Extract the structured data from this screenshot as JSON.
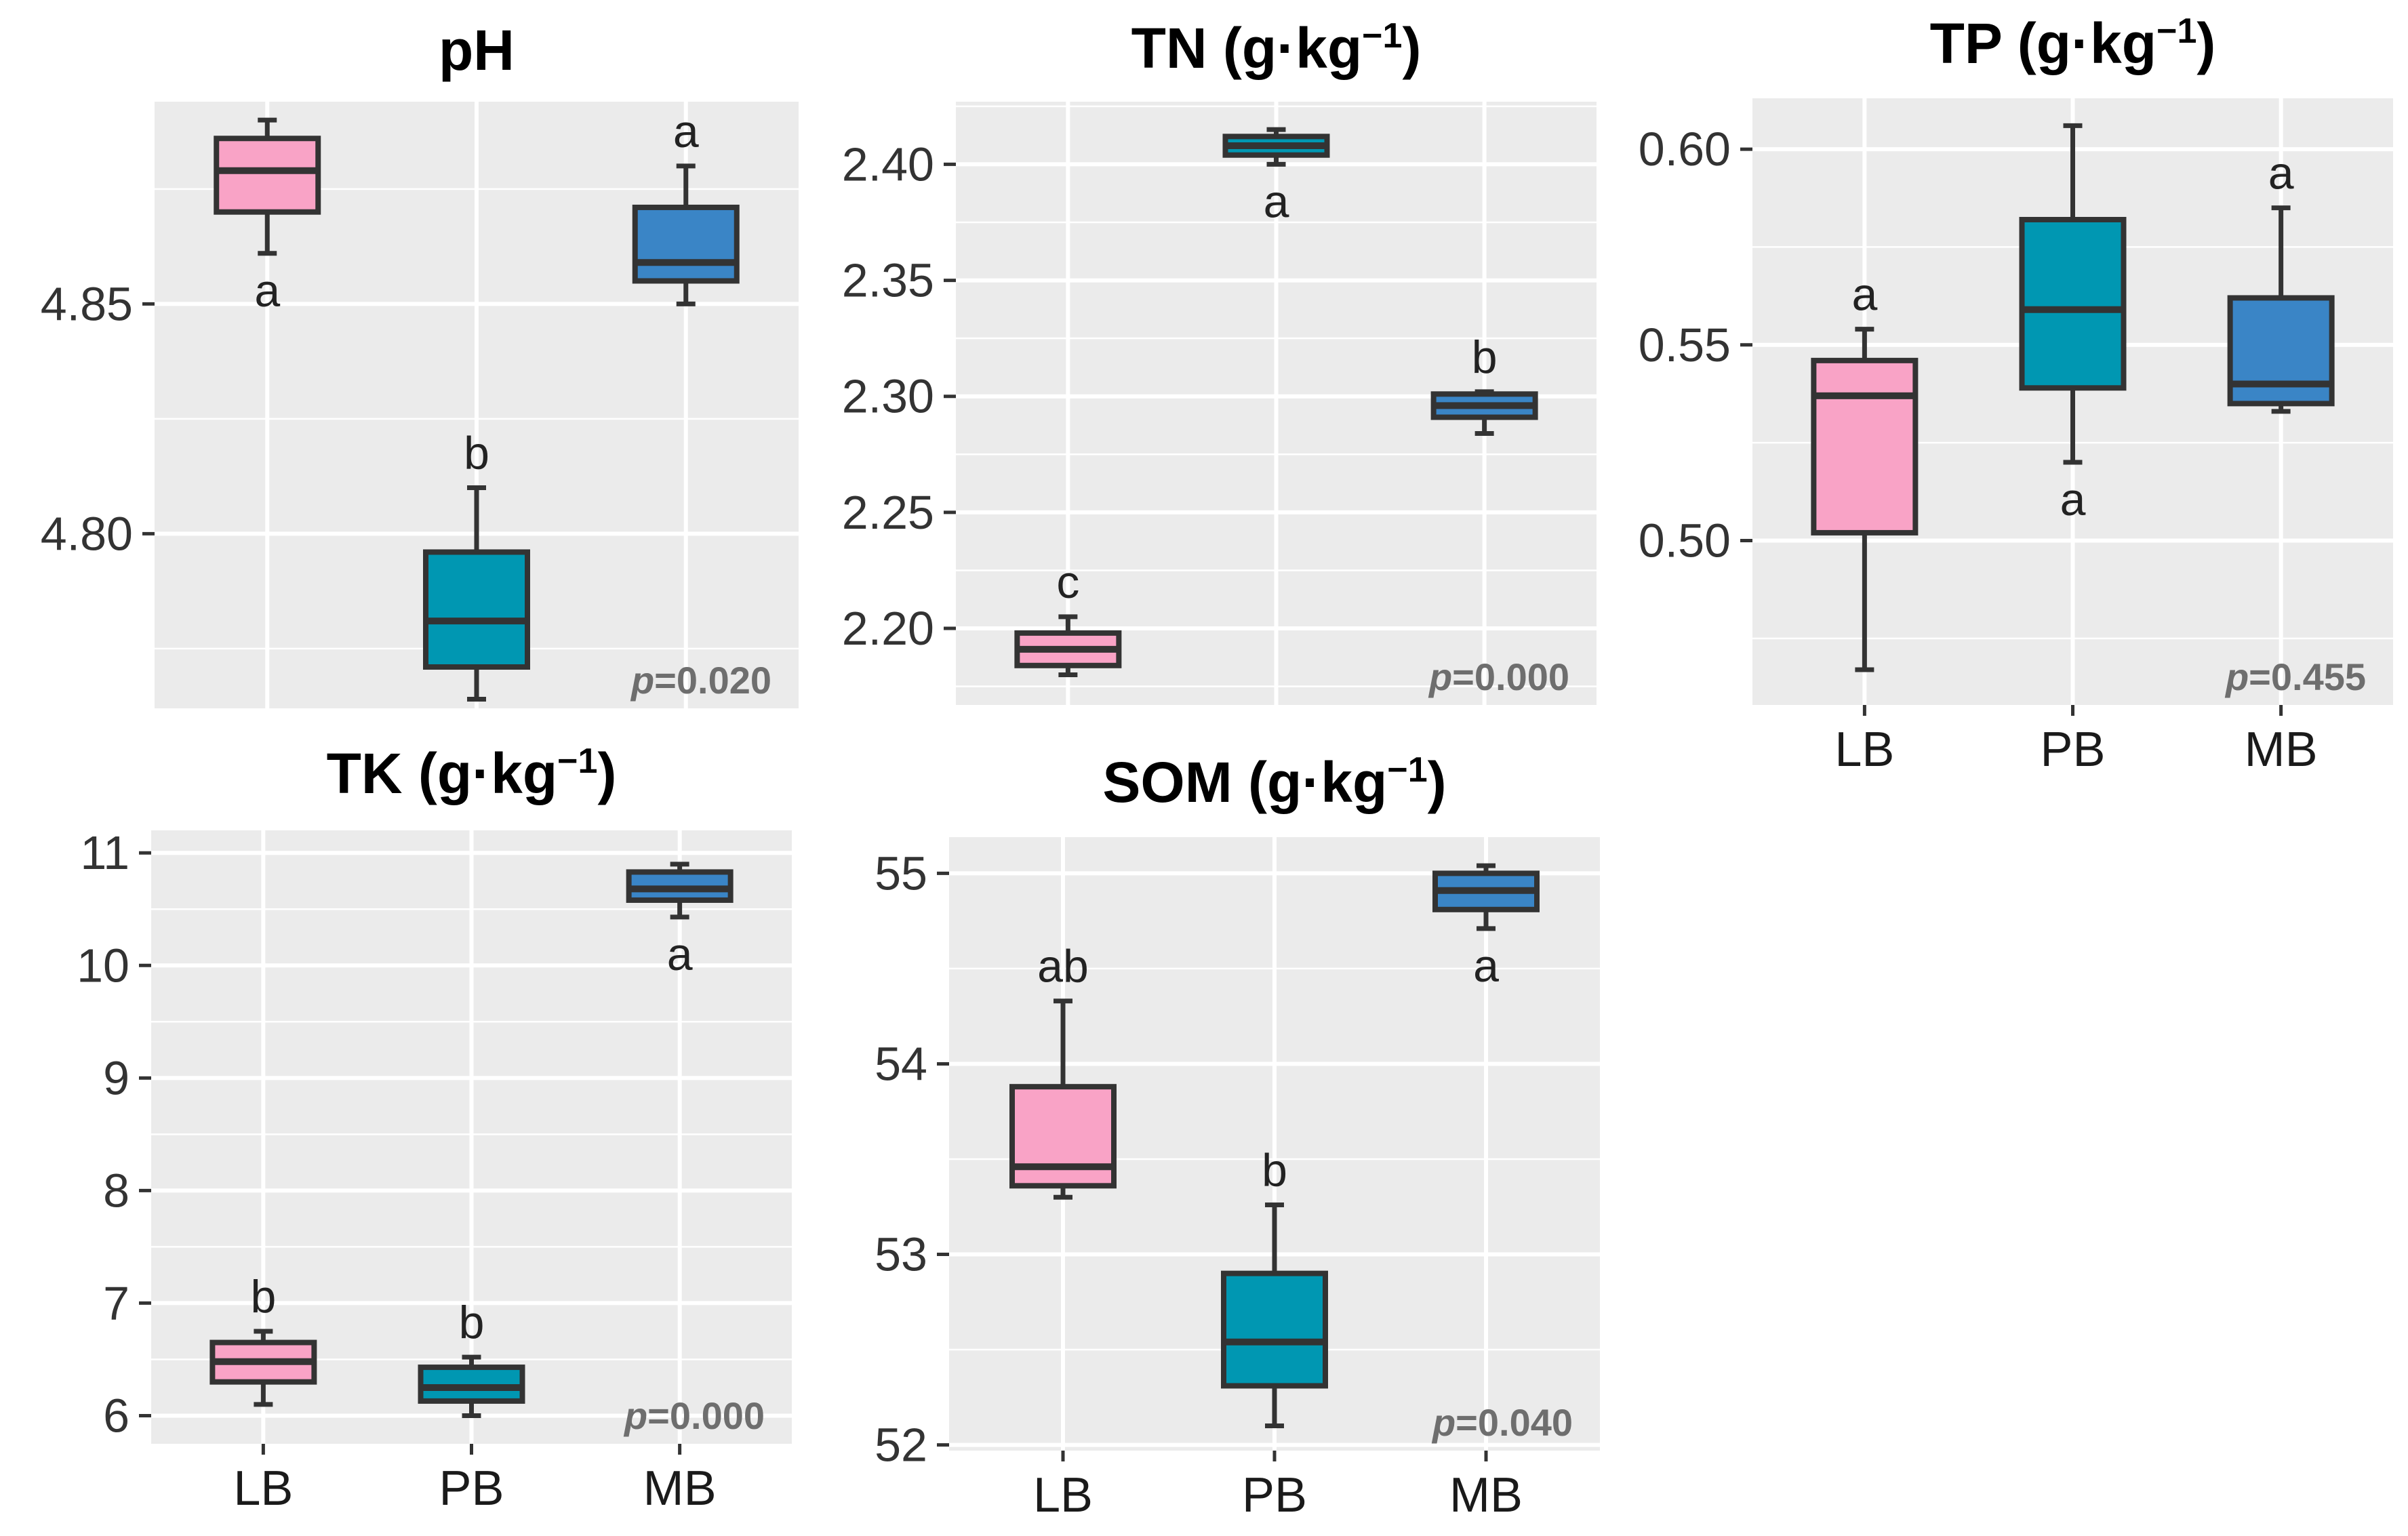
{
  "groups": [
    "LB",
    "PB",
    "MB"
  ],
  "colors": {
    "LB": "#f9a3c6",
    "PB": "#0097b2",
    "MB": "#3a85c6",
    "panel_bg": "#ebebeb",
    "grid": "#ffffff",
    "box_line": "#333333"
  },
  "chart_data": [
    {
      "id": "ph",
      "type": "box",
      "title": "pH",
      "unit": "",
      "ylim": [
        4.762,
        4.894
      ],
      "yticks": [
        4.8,
        4.85
      ],
      "ytick_labels": [
        "4.80",
        "4.85"
      ],
      "show_xlabels": false,
      "p_prefix": "p",
      "p_value": "=0.020",
      "boxes": [
        {
          "group": "LB",
          "min": 4.861,
          "q1": 4.87,
          "median": 4.879,
          "q3": 4.886,
          "max": 4.89,
          "label": "a",
          "label_pos": "below"
        },
        {
          "group": "PB",
          "min": 4.764,
          "q1": 4.771,
          "median": 4.781,
          "q3": 4.796,
          "max": 4.81,
          "label": "b",
          "label_pos": "above"
        },
        {
          "group": "MB",
          "min": 4.85,
          "q1": 4.855,
          "median": 4.859,
          "q3": 4.871,
          "max": 4.88,
          "label": "a",
          "label_pos": "above"
        }
      ]
    },
    {
      "id": "tn",
      "type": "box",
      "title": "TN (g·kg",
      "unit": "−1",
      "title_close": ")",
      "ylim": [
        2.167,
        2.427
      ],
      "yticks": [
        2.2,
        2.25,
        2.3,
        2.35,
        2.4
      ],
      "ytick_labels": [
        "2.20",
        "2.25",
        "2.30",
        "2.35",
        "2.40"
      ],
      "show_xlabels": false,
      "p_prefix": "p",
      "p_value": "=0.000",
      "boxes": [
        {
          "group": "LB",
          "min": 2.18,
          "q1": 2.184,
          "median": 2.191,
          "q3": 2.198,
          "max": 2.205,
          "label": "c",
          "label_pos": "above"
        },
        {
          "group": "PB",
          "min": 2.4,
          "q1": 2.404,
          "median": 2.408,
          "q3": 2.412,
          "max": 2.415,
          "label": "a",
          "label_pos": "below"
        },
        {
          "group": "MB",
          "min": 2.284,
          "q1": 2.291,
          "median": 2.296,
          "q3": 2.301,
          "max": 2.302,
          "label": "b",
          "label_pos": "above"
        }
      ]
    },
    {
      "id": "tp",
      "type": "box",
      "title": "TP (g·kg",
      "unit": "−1",
      "title_close": ")",
      "ylim": [
        0.458,
        0.613
      ],
      "yticks": [
        0.5,
        0.55,
        0.6
      ],
      "ytick_labels": [
        "0.50",
        "0.55",
        "0.60"
      ],
      "show_xlabels": true,
      "p_prefix": "p",
      "p_value": "=0.455",
      "boxes": [
        {
          "group": "LB",
          "min": 0.467,
          "q1": 0.502,
          "median": 0.537,
          "q3": 0.546,
          "max": 0.554,
          "label": "a",
          "label_pos": "above"
        },
        {
          "group": "PB",
          "min": 0.52,
          "q1": 0.539,
          "median": 0.559,
          "q3": 0.582,
          "max": 0.606,
          "label": "a",
          "label_pos": "below"
        },
        {
          "group": "MB",
          "min": 0.533,
          "q1": 0.535,
          "median": 0.54,
          "q3": 0.562,
          "max": 0.585,
          "label": "a",
          "label_pos": "above"
        }
      ]
    },
    {
      "id": "tk",
      "type": "box",
      "title": "TK (g·kg",
      "unit": "−1",
      "title_close": ")",
      "ylim": [
        5.75,
        11.2
      ],
      "yticks": [
        6,
        7,
        8,
        9,
        10,
        11
      ],
      "ytick_labels": [
        "6",
        "7",
        "8",
        "9",
        "10",
        "11"
      ],
      "show_xlabels": true,
      "p_prefix": "p",
      "p_value": "=0.000",
      "boxes": [
        {
          "group": "LB",
          "min": 6.1,
          "q1": 6.3,
          "median": 6.48,
          "q3": 6.65,
          "max": 6.75,
          "label": "b",
          "label_pos": "above"
        },
        {
          "group": "PB",
          "min": 6.0,
          "q1": 6.13,
          "median": 6.25,
          "q3": 6.43,
          "max": 6.52,
          "label": "b",
          "label_pos": "above"
        },
        {
          "group": "MB",
          "min": 10.43,
          "q1": 10.58,
          "median": 10.68,
          "q3": 10.83,
          "max": 10.9,
          "label": "a",
          "label_pos": "below"
        }
      ]
    },
    {
      "id": "som",
      "type": "box",
      "title": "SOM (g·kg",
      "unit": "−1",
      "title_close": ")",
      "ylim": [
        51.97,
        55.19
      ],
      "yticks": [
        52,
        53,
        54,
        55
      ],
      "ytick_labels": [
        "52",
        "53",
        "54",
        "55"
      ],
      "show_xlabels": true,
      "p_prefix": "p",
      "p_value": "=0.040",
      "boxes": [
        {
          "group": "LB",
          "min": 53.3,
          "q1": 53.36,
          "median": 53.46,
          "q3": 53.88,
          "max": 54.33,
          "label": "ab",
          "label_pos": "above"
        },
        {
          "group": "PB",
          "min": 52.1,
          "q1": 52.31,
          "median": 52.54,
          "q3": 52.9,
          "max": 53.26,
          "label": "b",
          "label_pos": "above"
        },
        {
          "group": "MB",
          "min": 54.71,
          "q1": 54.81,
          "median": 54.91,
          "q3": 55.0,
          "max": 55.04,
          "label": "a",
          "label_pos": "below"
        }
      ]
    }
  ]
}
